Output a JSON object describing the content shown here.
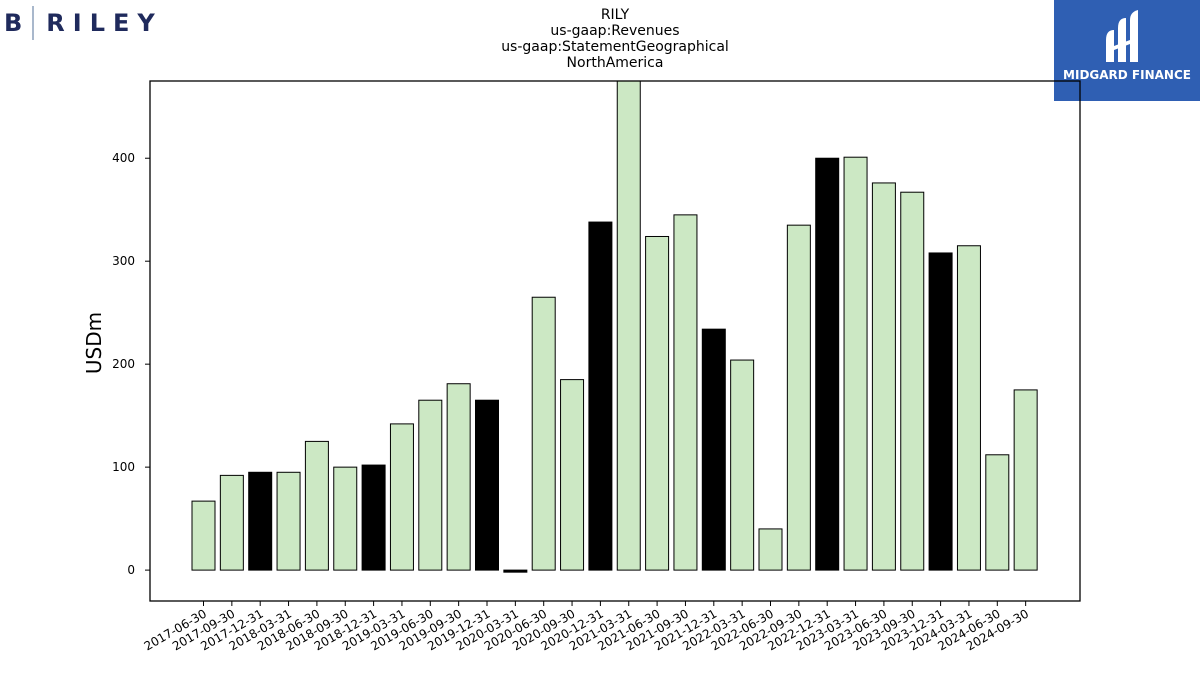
{
  "logos": {
    "left_initial": "B",
    "left_name": "RILEY",
    "right_name": "MIDGARD FINANCE"
  },
  "chart_data": {
    "type": "bar",
    "title_lines": [
      "RILY",
      "us-gaap:Revenues",
      "us-gaap:StatementGeographical",
      "NorthAmerica"
    ],
    "xlabel": "",
    "ylabel": "USDm",
    "ylim": [
      -30,
      475
    ],
    "yticks": [
      0,
      100,
      200,
      300,
      400
    ],
    "categories": [
      "2017-06-30",
      "2017-09-30",
      "2017-12-31",
      "2018-03-31",
      "2018-06-30",
      "2018-09-30",
      "2018-12-31",
      "2019-03-31",
      "2019-06-30",
      "2019-09-30",
      "2019-12-31",
      "2020-03-31",
      "2020-06-30",
      "2020-09-30",
      "2020-12-31",
      "2021-03-31",
      "2021-06-30",
      "2021-09-30",
      "2021-12-31",
      "2022-03-31",
      "2022-06-30",
      "2022-09-30",
      "2022-12-31",
      "2023-03-31",
      "2023-06-30",
      "2023-09-30",
      "2023-12-31",
      "2024-03-31",
      "2024-06-30",
      "2024-09-30"
    ],
    "values": [
      67,
      92,
      95,
      95,
      125,
      100,
      102,
      142,
      165,
      181,
      165,
      -2,
      265,
      185,
      338,
      475,
      324,
      345,
      234,
      204,
      40,
      335,
      400,
      401,
      376,
      367,
      308,
      315,
      112,
      175
    ],
    "highlight": [
      false,
      false,
      true,
      false,
      false,
      false,
      true,
      false,
      false,
      false,
      true,
      true,
      false,
      false,
      true,
      false,
      false,
      false,
      true,
      false,
      false,
      false,
      true,
      false,
      false,
      false,
      true,
      false,
      false,
      false
    ],
    "colors": {
      "normal": "#cce8c4",
      "highlight": "#000000",
      "edge": "#000000"
    },
    "grid": false,
    "legend": "none"
  }
}
